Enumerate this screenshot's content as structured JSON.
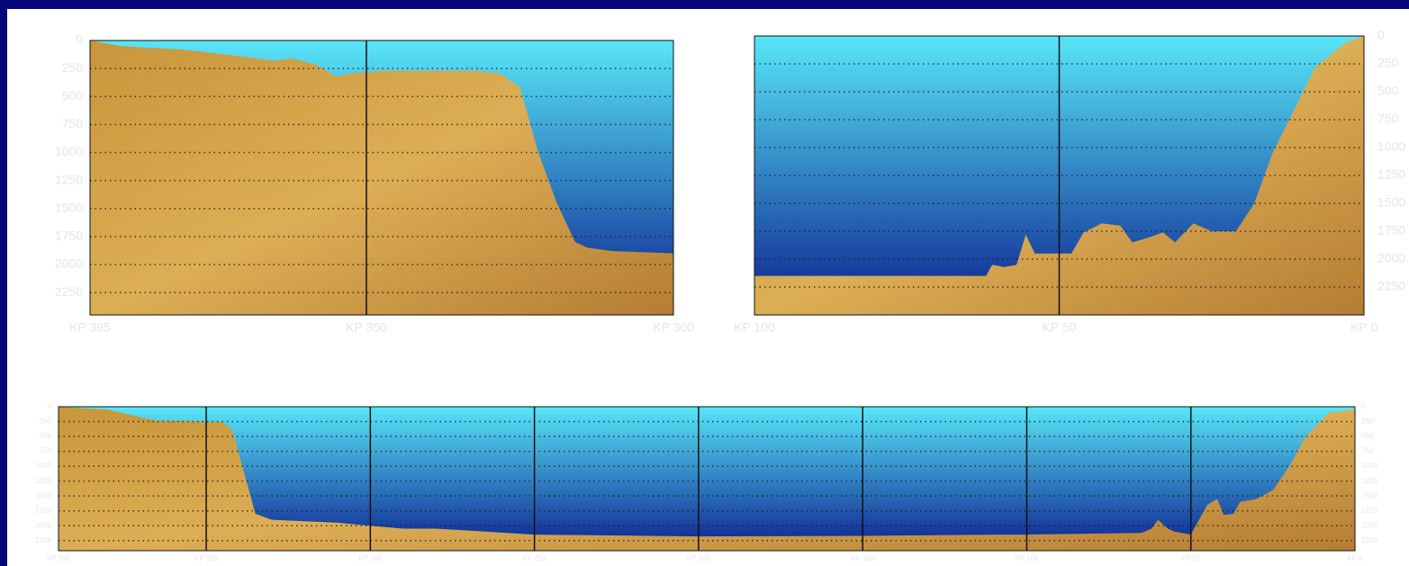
{
  "chart_data": [
    {
      "type": "area",
      "color": "#c8963a",
      "water_colors": [
        "#58e6f8",
        "#0b1f8e"
      ],
      "grid": true,
      "y_axis": "left",
      "x": [
        395,
        390,
        380,
        372,
        365,
        362,
        358,
        355,
        352,
        347,
        340,
        332,
        328,
        325,
        322,
        319,
        316,
        314,
        310,
        300
      ],
      "values": [
        0,
        50,
        80,
        130,
        180,
        160,
        220,
        320,
        290,
        270,
        270,
        270,
        300,
        420,
        1000,
        1450,
        1800,
        1850,
        1880,
        1900
      ],
      "xlim": [
        395,
        300
      ],
      "ylim": [
        0,
        2450
      ],
      "xticks": [
        {
          "value": 395,
          "label": "KP 395"
        },
        {
          "value": 350,
          "label": "KP 350"
        },
        {
          "value": 300,
          "label": "KP 300"
        }
      ],
      "yticks": [
        0,
        250,
        500,
        750,
        1000,
        1250,
        1500,
        1750,
        2000,
        2250
      ]
    },
    {
      "type": "area",
      "color": "#c8963a",
      "water_colors": [
        "#58e6f8",
        "#0b1f8e"
      ],
      "grid": true,
      "y_axis": "right",
      "x": [
        100,
        62,
        61,
        59,
        57,
        55.5,
        54,
        48,
        46,
        43,
        40,
        38,
        35,
        33,
        31,
        28,
        25,
        21,
        18,
        15,
        8,
        3,
        0
      ],
      "values": [
        2150,
        2150,
        2050,
        2070,
        2050,
        1780,
        1950,
        1950,
        1760,
        1680,
        1700,
        1850,
        1800,
        1760,
        1850,
        1680,
        1750,
        1750,
        1500,
        1050,
        280,
        60,
        0
      ],
      "xlim": [
        100,
        0
      ],
      "ylim": [
        0,
        2500
      ],
      "xticks": [
        {
          "value": 100,
          "label": "KP 100"
        },
        {
          "value": 50,
          "label": "KP 50"
        },
        {
          "value": 0,
          "label": "KP 0"
        }
      ],
      "yticks": [
        0,
        250,
        500,
        750,
        1000,
        1250,
        1500,
        1750,
        2000,
        2250
      ]
    },
    {
      "type": "area",
      "color": "#c8963a",
      "water_colors": [
        "#58e6f8",
        "#0b1f8e"
      ],
      "grid": true,
      "y_axis": "both",
      "x": [
        395,
        380,
        372,
        368,
        365,
        355,
        345,
        342,
        338,
        335,
        330,
        310,
        300,
        290,
        280,
        250,
        200,
        150,
        110,
        100,
        65,
        62,
        60,
        57,
        55,
        50,
        45,
        42,
        40,
        37,
        35,
        30,
        25,
        20,
        15,
        8,
        0
      ],
      "values": [
        0,
        50,
        150,
        200,
        230,
        240,
        260,
        400,
        1200,
        1800,
        1900,
        1950,
        2000,
        2050,
        2050,
        2150,
        2180,
        2170,
        2150,
        2150,
        2120,
        2050,
        1900,
        2050,
        2100,
        2150,
        1650,
        1550,
        1820,
        1800,
        1600,
        1550,
        1400,
        1000,
        500,
        100,
        50
      ],
      "xlim": [
        395,
        0
      ],
      "ylim": [
        0,
        2420
      ],
      "xticks": [
        {
          "value": 395,
          "label": "KP 395"
        },
        {
          "value": 350,
          "label": "KP 350"
        },
        {
          "value": 300,
          "label": "KP 300"
        },
        {
          "value": 250,
          "label": "KP 250"
        },
        {
          "value": 200,
          "label": "KP 200"
        },
        {
          "value": 150,
          "label": "KP 150"
        },
        {
          "value": 100,
          "label": "KP 100"
        },
        {
          "value": 50,
          "label": "KP 50"
        },
        {
          "value": 0,
          "label": "KP 0"
        }
      ],
      "yticks": [
        0,
        250,
        500,
        750,
        1000,
        1250,
        1500,
        1750,
        2000,
        2250
      ]
    }
  ]
}
